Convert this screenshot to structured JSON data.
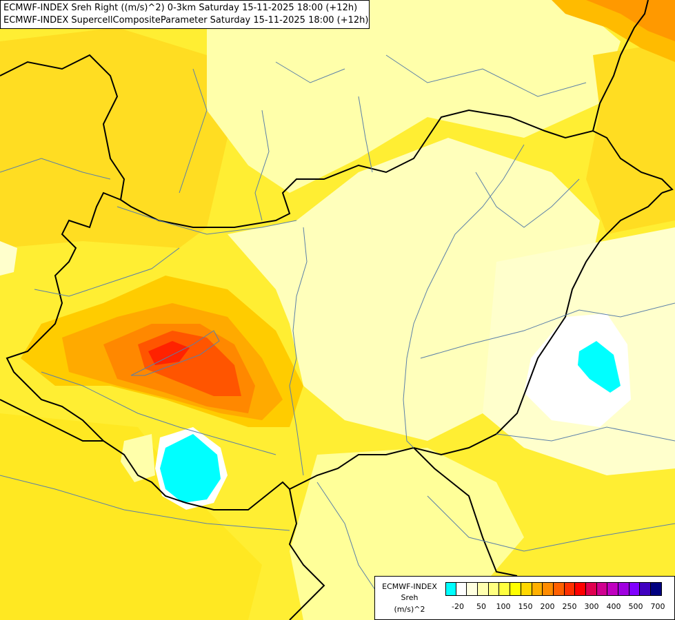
{
  "title": {
    "line1": "ECMWF-INDEX Sreh Right ((m/s)^2) 0-3km Saturday 15-11-2025 18:00 (+12h)",
    "line2": "ECMWF-INDEX SupercellCompositeParameter Saturday 15-11-2025 18:00 (+12h)"
  },
  "legend": {
    "label_line1": "ECMWF-INDEX",
    "label_line2": "Sreh",
    "label_line3": "(m/s)^2",
    "colors": [
      "#00ffff",
      "#ffffff",
      "#ffffe0",
      "#ffffb0",
      "#ffff80",
      "#ffff40",
      "#ffff00",
      "#ffd800",
      "#ffb000",
      "#ff8c00",
      "#ff6000",
      "#ff3000",
      "#ff0000",
      "#e00050",
      "#d00090",
      "#c000c0",
      "#a000e0",
      "#8000ff",
      "#4000c0",
      "#000080"
    ],
    "ticks": [
      "-20",
      "50",
      "100",
      "150",
      "200",
      "250",
      "300",
      "400",
      "500",
      "700"
    ]
  },
  "map": {
    "background_color": "#ffff66",
    "border_color": "#000000",
    "river_color": "#5a7fa8"
  }
}
